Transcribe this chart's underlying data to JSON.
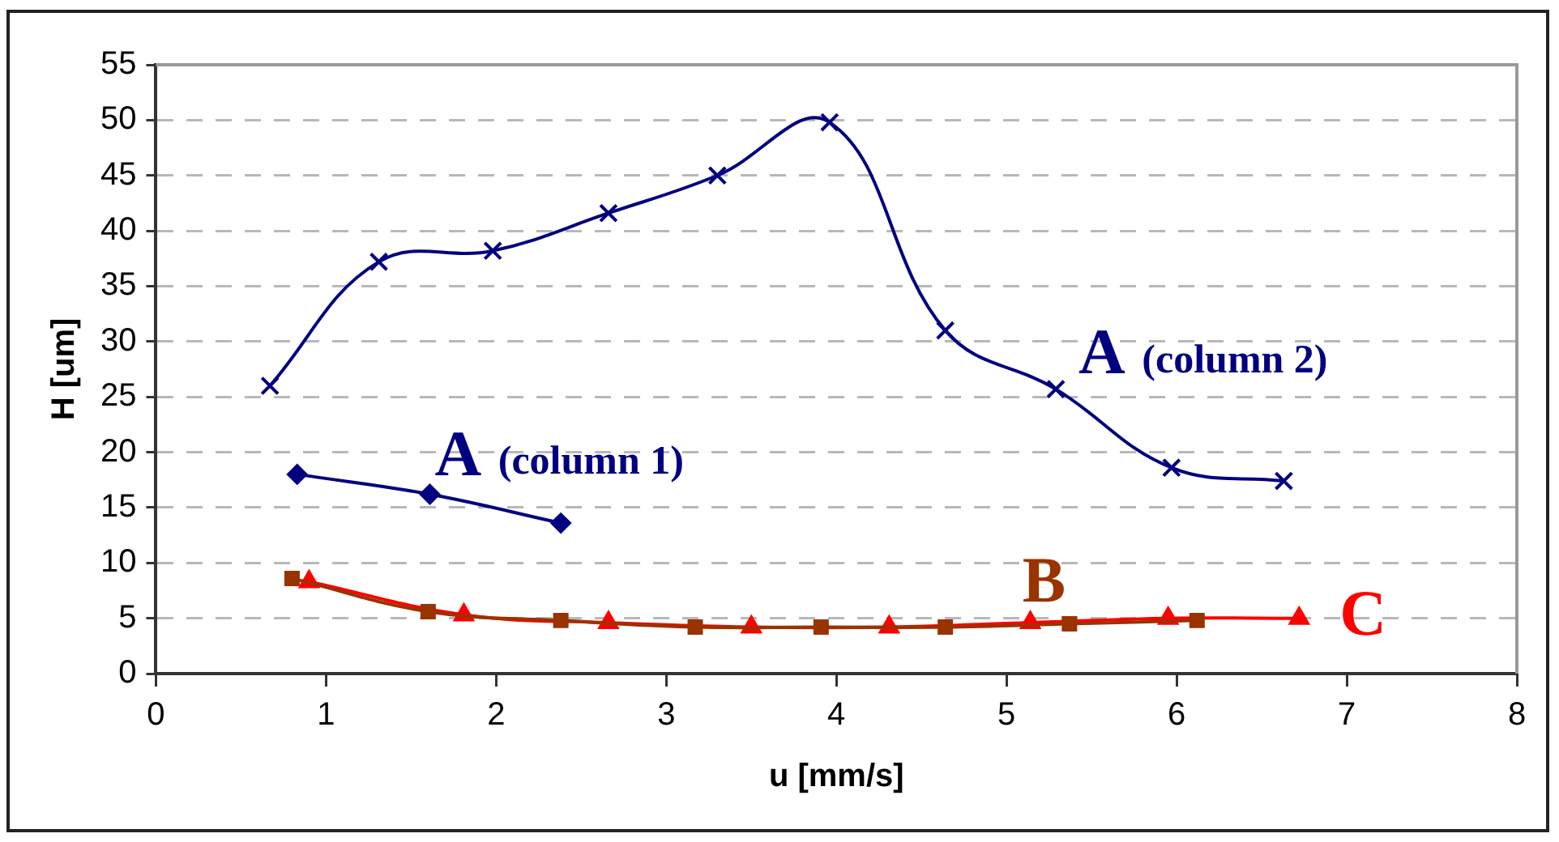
{
  "chart_data": {
    "type": "line",
    "xlabel": "u [mm/s]",
    "ylabel": "H [um]",
    "xlim": [
      0,
      8
    ],
    "xticks": [
      0,
      1,
      2,
      3,
      4,
      5,
      6,
      7,
      8
    ],
    "ylim": [
      0,
      55
    ],
    "yticks": [
      0,
      5,
      10,
      15,
      20,
      25,
      30,
      35,
      40,
      45,
      50,
      55
    ],
    "grid": "y",
    "legend": false,
    "series": [
      {
        "name": "A (column 2)",
        "color": "#000080",
        "marker": "cross",
        "x": [
          0.67,
          1.31,
          1.98,
          2.66,
          3.3,
          3.96,
          4.64,
          5.29,
          5.97,
          6.63
        ],
        "values": [
          26,
          37.2,
          38.2,
          41.6,
          45,
          49.8,
          31,
          25.7,
          18.6,
          17.4
        ]
      },
      {
        "name": "A (column 1)",
        "color": "#000080",
        "marker": "diamond",
        "x": [
          0.83,
          1.61,
          2.38
        ],
        "values": [
          18,
          16.2,
          13.6
        ]
      },
      {
        "name": "B",
        "color": "#993300",
        "marker": "square",
        "x": [
          0.8,
          1.6,
          2.38,
          3.17,
          3.91,
          4.64,
          5.37,
          6.12
        ],
        "values": [
          8.6,
          5.6,
          4.8,
          4.2,
          4.2,
          4.2,
          4.5,
          4.8
        ]
      },
      {
        "name": "C",
        "color": "#ff0000",
        "marker": "triangle",
        "x": [
          0.9,
          1.81,
          2.66,
          3.5,
          4.31,
          5.14,
          5.95,
          6.72
        ],
        "values": [
          8.3,
          5.3,
          4.6,
          4.2,
          4.2,
          4.6,
          5,
          5
        ]
      }
    ]
  }
}
